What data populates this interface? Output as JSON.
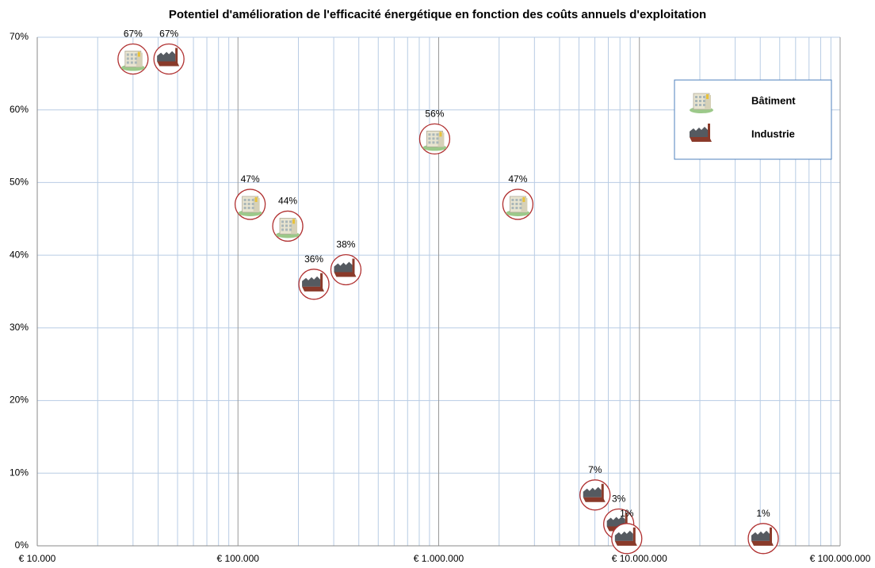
{
  "chart_data": {
    "type": "scatter",
    "title": "Potentiel d'amélioration de l'efficacité énergétique en fonction des coûts annuels d'exploitation",
    "xscale": "log",
    "xlim": [
      10000,
      100000000
    ],
    "xticks": [
      {
        "value": 10000,
        "label": "€ 10.000"
      },
      {
        "value": 100000,
        "label": "€ 100.000"
      },
      {
        "value": 1000000,
        "label": "€ 1.000.000"
      },
      {
        "value": 10000000,
        "label": "€ 10.000.000"
      },
      {
        "value": 100000000,
        "label": "€ 100.000.000"
      }
    ],
    "ylim": [
      0,
      70
    ],
    "yticks": [
      {
        "value": 0,
        "label": "0%"
      },
      {
        "value": 10,
        "label": "10%"
      },
      {
        "value": 20,
        "label": "20%"
      },
      {
        "value": 30,
        "label": "30%"
      },
      {
        "value": 40,
        "label": "40%"
      },
      {
        "value": 50,
        "label": "50%"
      },
      {
        "value": 60,
        "label": "60%"
      },
      {
        "value": 70,
        "label": "70%"
      }
    ],
    "grid": true,
    "minor_grid": true,
    "legend": "upper right",
    "marker_edge_color": "#b03030",
    "series": [
      {
        "name": "Bâtiment",
        "color": "#e8e4d0",
        "x": [
          30000,
          115000,
          177000,
          955000,
          2480000
        ],
        "values": [
          67,
          47,
          44,
          56,
          47
        ],
        "value_labels": [
          "67%",
          "47%",
          "44%",
          "56%",
          "47%"
        ]
      },
      {
        "name": "Industrie",
        "color": "#555a60",
        "x": [
          45300,
          239000,
          345000,
          6010000,
          7890000,
          8650000,
          41400000
        ],
        "values": [
          67,
          36,
          38,
          7,
          3,
          1,
          1
        ],
        "value_labels": [
          "67%",
          "36%",
          "38%",
          "7%",
          "3%",
          "1%",
          "1%"
        ]
      }
    ]
  }
}
